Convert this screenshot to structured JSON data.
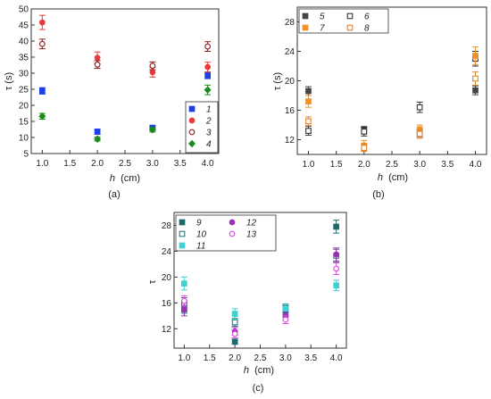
{
  "chart_data": [
    {
      "type": "scatter",
      "panel_label": "(a)",
      "xlabel": "h",
      "xunit": "(cm)",
      "ylabel": "τ (s)",
      "xlim": [
        0.8,
        4.2
      ],
      "ylim": [
        5,
        50
      ],
      "xticks": [
        1.0,
        1.5,
        2.0,
        2.5,
        3.0,
        3.5,
        4.0
      ],
      "yticks": [
        5,
        10,
        15,
        20,
        25,
        30,
        35,
        40,
        45,
        50
      ],
      "legend_position": "bottom-right",
      "series": [
        {
          "name": "1",
          "marker": "square",
          "filled": true,
          "color": "#1f3ee8",
          "x": [
            1,
            2,
            3,
            4
          ],
          "y": [
            24.5,
            11.8,
            13.0,
            29.3
          ],
          "err": [
            1.0,
            0.8,
            0.8,
            1.0
          ]
        },
        {
          "name": "2",
          "marker": "circle",
          "filled": true,
          "color": "#e83a3a",
          "x": [
            1,
            2,
            3,
            4
          ],
          "y": [
            45.8,
            34.8,
            30.3,
            31.9
          ],
          "err": [
            2.2,
            1.8,
            1.5,
            1.5
          ]
        },
        {
          "name": "3",
          "marker": "circle",
          "filled": false,
          "color": "#8b1a1a",
          "x": [
            1,
            2,
            3,
            4
          ],
          "y": [
            39.1,
            32.7,
            32.3,
            38.3
          ],
          "err": [
            1.5,
            1.2,
            1.2,
            1.5
          ]
        },
        {
          "name": "4",
          "marker": "diamond",
          "filled": true,
          "color": "#1c8a1c",
          "x": [
            1,
            2,
            3,
            4
          ],
          "y": [
            16.6,
            9.5,
            12.4,
            24.8
          ],
          "err": [
            0.9,
            0.6,
            0.7,
            1.5
          ]
        }
      ]
    },
    {
      "type": "scatter",
      "panel_label": "(b)",
      "xlabel": "h",
      "xunit": "(cm)",
      "ylabel": "τ (s)",
      "xlim": [
        0.8,
        4.2
      ],
      "ylim": [
        10,
        30
      ],
      "xticks": [
        1.0,
        1.5,
        2.0,
        2.5,
        3.0,
        3.5,
        4.0
      ],
      "yticks": [
        12,
        16,
        20,
        24,
        28
      ],
      "legend_position": "top-left",
      "series": [
        {
          "name": "5",
          "marker": "square",
          "filled": true,
          "color": "#444444",
          "x": [
            1,
            2,
            3,
            4
          ],
          "y": [
            18.6,
            13.3,
            12.9,
            18.7
          ],
          "err": [
            0.6,
            0.5,
            0.5,
            0.6
          ]
        },
        {
          "name": "6",
          "marker": "square",
          "filled": false,
          "color": "#333333",
          "x": [
            1,
            2,
            3,
            4
          ],
          "y": [
            13.2,
            13.1,
            16.4,
            23.0
          ],
          "err": [
            0.6,
            0.6,
            0.7,
            1.0
          ]
        },
        {
          "name": "7",
          "marker": "square",
          "filled": true,
          "color": "#f0912a",
          "x": [
            1,
            2,
            3,
            4
          ],
          "y": [
            17.2,
            11.2,
            13.4,
            23.4
          ],
          "err": [
            0.8,
            0.7,
            0.6,
            1.2
          ]
        },
        {
          "name": "8",
          "marker": "square",
          "filled": false,
          "color": "#e0842a",
          "x": [
            1,
            2,
            3,
            4
          ],
          "y": [
            14.5,
            10.9,
            12.8,
            20.3
          ],
          "err": [
            0.6,
            0.5,
            0.6,
            0.9
          ]
        }
      ]
    },
    {
      "type": "scatter",
      "panel_label": "(c)",
      "xlabel": "h",
      "xunit": "(cm)",
      "ylabel": "τ",
      "xlim": [
        0.8,
        4.2
      ],
      "ylim": [
        9,
        30
      ],
      "xticks": [
        1.0,
        1.5,
        2.0,
        2.5,
        3.0,
        3.5,
        4.0
      ],
      "yticks": [
        12,
        16,
        20,
        24,
        28
      ],
      "legend_position": "top-left",
      "series": [
        {
          "name": "9",
          "marker": "square",
          "filled": true,
          "color": "#1f6b6b",
          "x": [
            1,
            2,
            3,
            4
          ],
          "y": [
            15.0,
            10.0,
            14.4,
            27.8
          ],
          "err": [
            0.6,
            0.4,
            0.6,
            1.0
          ]
        },
        {
          "name": "10",
          "marker": "square",
          "filled": false,
          "color": "#2a7a7a",
          "x": [
            1,
            2,
            3,
            4
          ],
          "y": [
            16.0,
            13.0,
            15.2,
            23.3
          ],
          "err": [
            0.8,
            0.6,
            0.6,
            1.0
          ]
        },
        {
          "name": "11",
          "marker": "square",
          "filled": true,
          "color": "#3fd1d1",
          "x": [
            1,
            2,
            3,
            4
          ],
          "y": [
            19.0,
            14.3,
            15.0,
            18.7
          ],
          "err": [
            1.0,
            0.8,
            0.7,
            0.8
          ]
        },
        {
          "name": "12",
          "marker": "circle",
          "filled": true,
          "color": "#9b2fb8",
          "x": [
            1,
            2,
            3,
            4
          ],
          "y": [
            15.0,
            11.6,
            14.0,
            23.5
          ],
          "err": [
            1.0,
            0.6,
            0.6,
            1.0
          ]
        },
        {
          "name": "13",
          "marker": "circle",
          "filled": false,
          "color": "#e24ae2",
          "x": [
            1,
            2,
            3,
            4
          ],
          "y": [
            16.3,
            11.2,
            13.4,
            21.3
          ],
          "err": [
            0.8,
            0.6,
            0.6,
            0.9
          ]
        }
      ]
    }
  ]
}
